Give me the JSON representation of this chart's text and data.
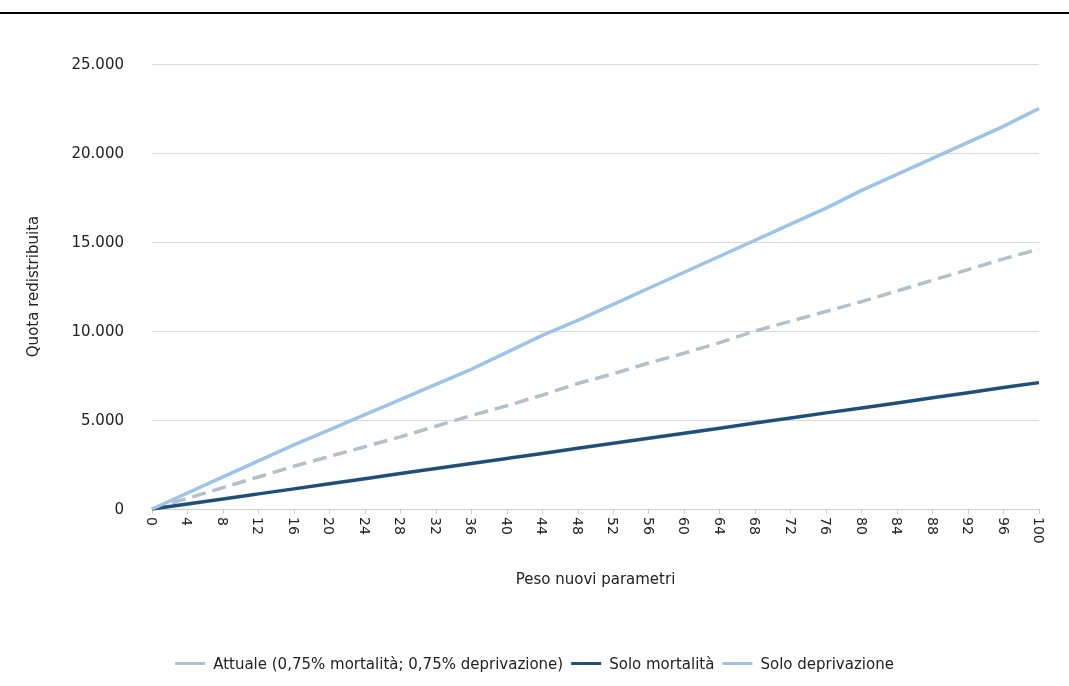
{
  "chart_data": {
    "type": "line",
    "xlabel": "Peso nuovi parametri",
    "ylabel": "Quota redistribuita",
    "x": [
      0,
      4,
      8,
      12,
      16,
      20,
      24,
      28,
      32,
      36,
      40,
      44,
      48,
      52,
      56,
      60,
      64,
      68,
      72,
      76,
      80,
      84,
      88,
      92,
      96,
      100
    ],
    "xlim": [
      0,
      100
    ],
    "xticks": [
      0,
      4,
      8,
      12,
      16,
      20,
      24,
      28,
      32,
      36,
      40,
      44,
      48,
      52,
      56,
      60,
      64,
      68,
      72,
      76,
      80,
      84,
      88,
      92,
      96,
      100
    ],
    "ylim": [
      0,
      25000
    ],
    "yticks": [
      0,
      {
        "value": 5000,
        "label": "5.000"
      },
      {
        "value": 10000,
        "label": "10.000"
      },
      {
        "value": 15000,
        "label": "15.000"
      },
      {
        "value": 20000,
        "label": "20.000"
      },
      {
        "value": 25000,
        "label": "25.000"
      }
    ],
    "grid": "y",
    "legend": "bottom",
    "marker": "none",
    "series": [
      {
        "name": "Attuale (0,75% mortalità; 0,75% deprivazione)",
        "color": "#b4bfcc",
        "line_style": "dashed",
        "values": [
          0,
          600,
          1200,
          1800,
          2400,
          2950,
          3500,
          4050,
          4650,
          5250,
          5800,
          6400,
          7050,
          7600,
          8200,
          8750,
          9350,
          10000,
          10550,
          11100,
          11650,
          12250,
          12850,
          13450,
          14050,
          14600
        ]
      },
      {
        "name": "Solo mortalità",
        "color": "#1f4e79",
        "line_style": "solid",
        "values": [
          0,
          280,
          560,
          850,
          1130,
          1420,
          1700,
          1990,
          2270,
          2560,
          2840,
          3120,
          3410,
          3690,
          3980,
          4260,
          4540,
          4830,
          5110,
          5400,
          5680,
          5960,
          6250,
          6530,
          6820,
          7100
        ]
      },
      {
        "name": "Solo deprivazione",
        "color": "#9dc3e6",
        "line_style": "solid",
        "values": [
          0,
          900,
          1800,
          2700,
          3600,
          4450,
          5300,
          6150,
          7000,
          7850,
          8800,
          9750,
          10600,
          11500,
          12400,
          13300,
          14200,
          15100,
          16000,
          16900,
          17900,
          18800,
          19700,
          20600,
          21500,
          22500
        ]
      }
    ]
  }
}
